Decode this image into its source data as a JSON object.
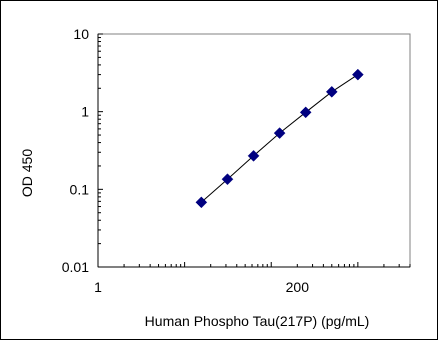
{
  "chart_data": {
    "type": "scatter",
    "title": "",
    "xlabel": "Human Phospho Tau(217P) (pg/mL)",
    "ylabel": "OD 450",
    "x_scale": "log",
    "y_scale": "log",
    "xlim": [
      1,
      4000
    ],
    "ylim": [
      0.01,
      10
    ],
    "x_ticks": [
      {
        "value": 1,
        "label": "1"
      },
      {
        "value": 200,
        "label": "200"
      }
    ],
    "y_ticks": [
      {
        "value": 10,
        "label": "10"
      },
      {
        "value": 1,
        "label": "1"
      },
      {
        "value": 0.1,
        "label": "0.1"
      },
      {
        "value": 0.01,
        "label": "0.01"
      }
    ],
    "grid": false,
    "legend": "none",
    "series": [
      {
        "marker": "diamond",
        "color": "#000080",
        "line_color": "#000000",
        "x": [
          15.6,
          31.25,
          62.5,
          125,
          250,
          500,
          1000
        ],
        "y": [
          0.068,
          0.135,
          0.27,
          0.53,
          0.98,
          1.8,
          3.0
        ]
      }
    ]
  }
}
